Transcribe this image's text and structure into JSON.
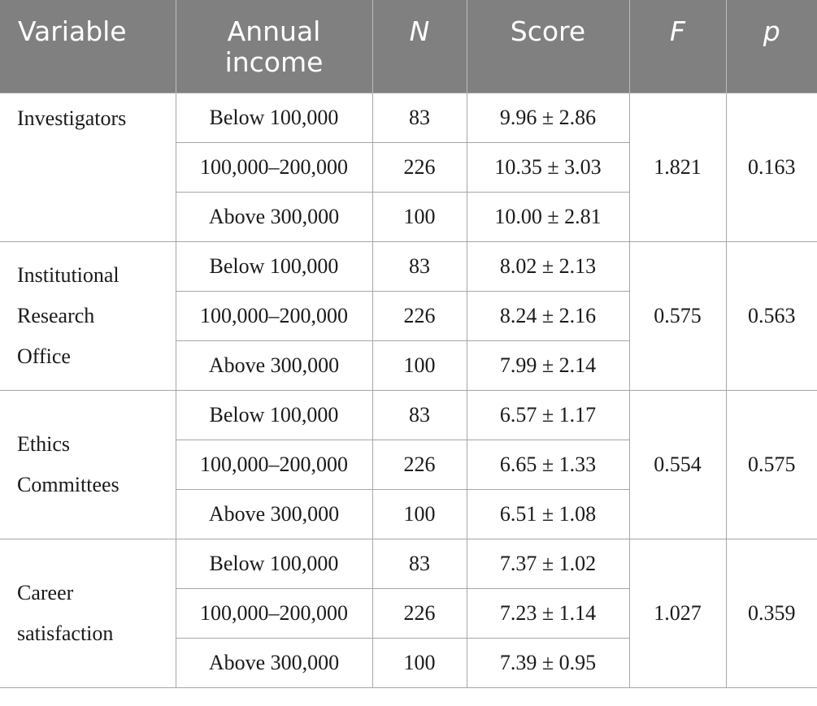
{
  "headers": {
    "variable": "Variable",
    "income_line1": "Annual",
    "income_line2": "income",
    "n": "N",
    "score": "Score",
    "f": "F",
    "p": "p"
  },
  "groups": [
    {
      "variable_lines": [
        "Investigators"
      ],
      "f": "1.821",
      "p": "0.163",
      "rows": [
        {
          "income": "Below 100,000",
          "n": "83",
          "score": "9.96 ± 2.86"
        },
        {
          "income": "100,000–200,000",
          "n": "226",
          "score": "10.35 ± 3.03"
        },
        {
          "income": "Above 300,000",
          "n": "100",
          "score": "10.00 ± 2.81"
        }
      ]
    },
    {
      "variable_lines": [
        "Institutional",
        "Research",
        "Office"
      ],
      "f": "0.575",
      "p": "0.563",
      "rows": [
        {
          "income": "Below 100,000",
          "n": "83",
          "score": "8.02 ± 2.13"
        },
        {
          "income": "100,000–200,000",
          "n": "226",
          "score": "8.24 ± 2.16"
        },
        {
          "income": "Above 300,000",
          "n": "100",
          "score": "7.99 ± 2.14"
        }
      ]
    },
    {
      "variable_lines": [
        "Ethics",
        "Committees"
      ],
      "f": "0.554",
      "p": "0.575",
      "rows": [
        {
          "income": "Below 100,000",
          "n": "83",
          "score": "6.57 ± 1.17"
        },
        {
          "income": "100,000–200,000",
          "n": "226",
          "score": "6.65 ± 1.33"
        },
        {
          "income": "Above 300,000",
          "n": "100",
          "score": "6.51 ± 1.08"
        }
      ]
    },
    {
      "variable_lines": [
        "Career",
        "satisfaction"
      ],
      "f": "1.027",
      "p": "0.359",
      "rows": [
        {
          "income": "Below 100,000",
          "n": "83",
          "score": "7.37 ± 1.02"
        },
        {
          "income": "100,000–200,000",
          "n": "226",
          "score": "7.23 ± 1.14"
        },
        {
          "income": "Above 300,000",
          "n": "100",
          "score": "7.39 ± 0.95"
        }
      ]
    }
  ]
}
